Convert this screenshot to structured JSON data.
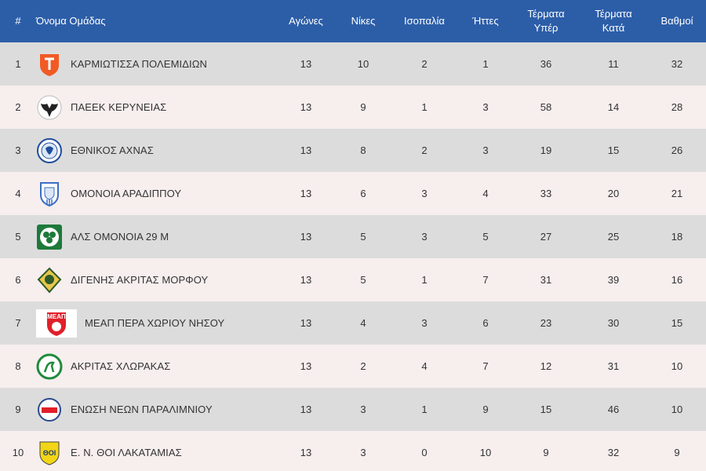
{
  "header": {
    "pos": "#",
    "team": "Όνομα Ομάδας",
    "played": "Αγώνες",
    "wins": "Νίκες",
    "draws": "Ισοπαλία",
    "losses": "Ήττες",
    "gf_line1": "Τέρματα",
    "gf_line2": "Υπέρ",
    "ga_line1": "Τέρματα",
    "ga_line2": "Κατά",
    "points": "Βαθμοί"
  },
  "rows": [
    {
      "pos": "1",
      "team": "ΚΑΡΜΙΩΤΙΣΣΑ ΠΟΛΕΜΙΔΙΩΝ",
      "played": "13",
      "wins": "10",
      "draws": "2",
      "losses": "1",
      "gf": "36",
      "ga": "11",
      "points": "32",
      "logo": "karmiotissa-crest-icon",
      "color": "#f15a24"
    },
    {
      "pos": "2",
      "team": "ΠΑΕΕΚ ΚΕΡΥΝΕΙΑΣ",
      "played": "13",
      "wins": "9",
      "draws": "1",
      "losses": "3",
      "gf": "58",
      "ga": "14",
      "points": "28",
      "logo": "eagle-crest-icon",
      "color": "#222222"
    },
    {
      "pos": "3",
      "team": "ΕΘΝΙΚΟΣ ΑΧΝΑΣ",
      "played": "13",
      "wins": "8",
      "draws": "2",
      "losses": "3",
      "gf": "19",
      "ga": "15",
      "points": "26",
      "logo": "ethnikos-crest-icon",
      "color": "#1f4e9c"
    },
    {
      "pos": "4",
      "team": "ΟΜΟΝΟΙΑ ΑΡΑΔΙΠΠΟΥ",
      "played": "13",
      "wins": "6",
      "draws": "3",
      "losses": "4",
      "gf": "33",
      "ga": "20",
      "points": "21",
      "logo": "shield-crest-icon",
      "color": "#3a6fc4"
    },
    {
      "pos": "5",
      "team": "ΑΛΣ ΟΜΟΝΟΙΑ 29 Μ",
      "played": "13",
      "wins": "5",
      "draws": "3",
      "losses": "5",
      "gf": "27",
      "ga": "25",
      "points": "18",
      "logo": "clover-crest-icon",
      "color": "#1d7a3a"
    },
    {
      "pos": "6",
      "team": "ΔΙΓΕΝΗΣ ΑΚΡΙΤΑΣ ΜΟΡΦΟΥ",
      "played": "13",
      "wins": "5",
      "draws": "1",
      "losses": "7",
      "gf": "31",
      "ga": "39",
      "points": "16",
      "logo": "warrior-crest-icon",
      "color": "#2d5a27"
    },
    {
      "pos": "7",
      "team": "ΜΕΑΠ ΠΕΡΑ ΧΩΡΙΟΥ ΝΗΣΟΥ",
      "played": "13",
      "wins": "4",
      "draws": "3",
      "losses": "6",
      "gf": "23",
      "ga": "30",
      "points": "15",
      "logo": "meap-crest-icon",
      "color": "#e0202a",
      "logo_text": "ΜΕΑΠ"
    },
    {
      "pos": "8",
      "team": "ΑΚΡΙΤΑΣ ΧΛΩΡΑΚΑΣ",
      "played": "13",
      "wins": "2",
      "draws": "4",
      "losses": "7",
      "gf": "12",
      "ga": "31",
      "points": "10",
      "logo": "horse-crest-icon",
      "color": "#1f8a3b"
    },
    {
      "pos": "9",
      "team": "ΕΝΩΣΗ ΝΕΩΝ ΠΑΡΑΛΙΜΝΙΟΥ",
      "played": "13",
      "wins": "3",
      "draws": "1",
      "losses": "9",
      "gf": "15",
      "ga": "46",
      "points": "10",
      "logo": "enp-crest-icon",
      "color": "#2a4a8c"
    },
    {
      "pos": "10",
      "team": "Ε. Ν. ΘΟΙ ΛΑΚΑΤΑΜΙΑΣ",
      "played": "13",
      "wins": "3",
      "draws": "0",
      "losses": "10",
      "gf": "9",
      "ga": "32",
      "points": "9",
      "logo": "thoi-crest-icon",
      "color": "#f2d516",
      "logo_text": "ΘΟΙ"
    }
  ],
  "colors": {
    "header_bg": "#2c5ea8",
    "row_odd": "#dcdcdc",
    "row_even": "#f7eeee"
  }
}
